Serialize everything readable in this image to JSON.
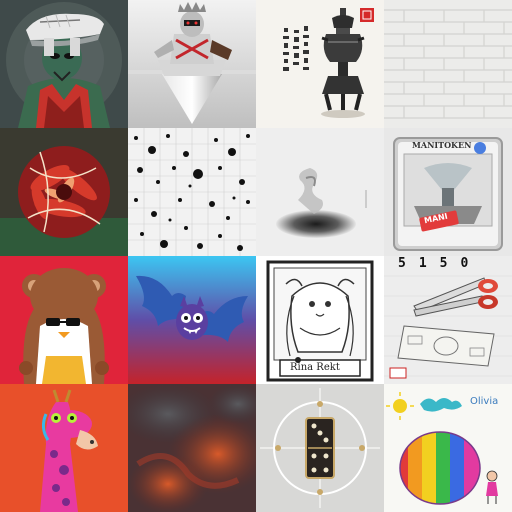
{
  "grid": {
    "rows": 4,
    "cols": 4,
    "tiles": [
      {
        "subject": "alien-sneaker-helmet-figure"
      },
      {
        "subject": "chrome-robot-on-spike"
      },
      {
        "subject": "ink-censer-with-chinese-script"
      },
      {
        "subject": "white-brick-wall"
      },
      {
        "subject": "red-flower-collage"
      },
      {
        "subject": "dot-pattern-grid"
      },
      {
        "subject": "vortex-hole-in-white"
      },
      {
        "subject": "manitoken-card",
        "title": "MANITOKEN",
        "badge": "MANI"
      },
      {
        "subject": "pudgy-bear-with-sunglasses"
      },
      {
        "subject": "cartoon-bat"
      },
      {
        "subject": "anime-girl-card",
        "caption": "Rina Rekt"
      },
      {
        "subject": "scissors-cutting-dollar",
        "header": "5150"
      },
      {
        "subject": "neon-giraffe"
      },
      {
        "subject": "abstract-red-smoke"
      },
      {
        "subject": "domino-circuit"
      },
      {
        "subject": "child-rainbow-drawing",
        "signature": "Olivia"
      }
    ]
  },
  "colors": {
    "red_bg": "#e0243a",
    "sky": "#3cc6f2",
    "orange": "#e8502a"
  }
}
